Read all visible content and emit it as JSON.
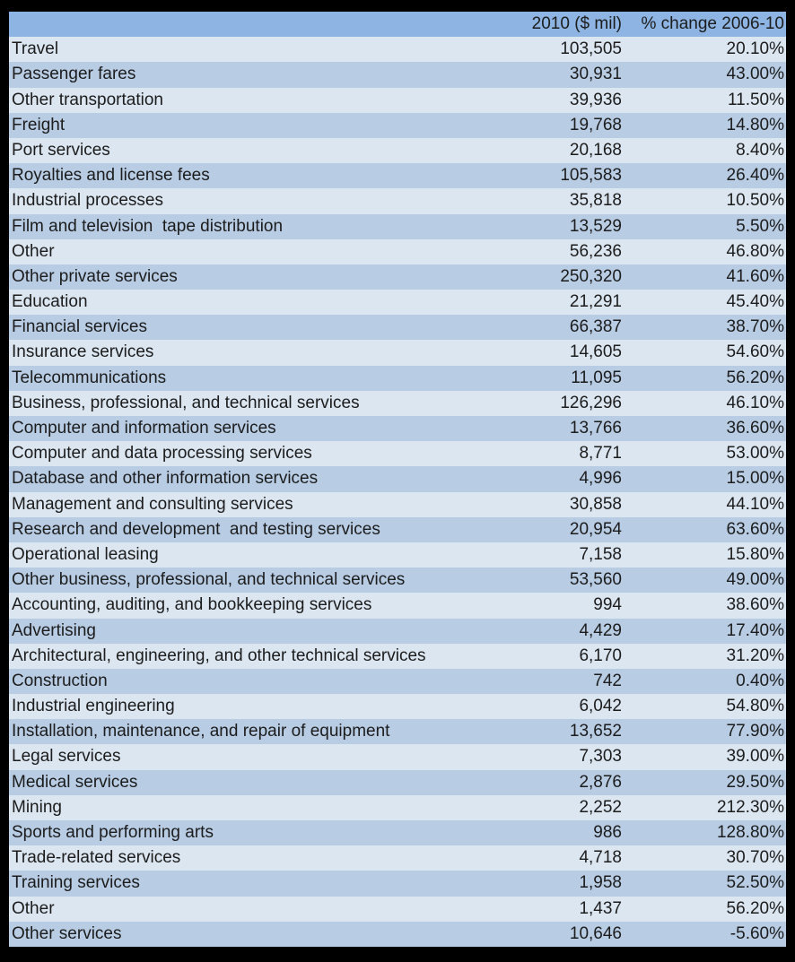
{
  "chart_data": {
    "type": "table",
    "columns": [
      "2010 ($ mil)",
      "% change 2006-10"
    ],
    "rows": [
      {
        "label": "Travel",
        "value_2010_mil": "103,505",
        "pct_change_2006_10": "20.10%"
      },
      {
        "label": "Passenger fares",
        "value_2010_mil": "30,931",
        "pct_change_2006_10": "43.00%"
      },
      {
        "label": "Other transportation",
        "value_2010_mil": "39,936",
        "pct_change_2006_10": "11.50%"
      },
      {
        "label": "Freight",
        "value_2010_mil": "19,768",
        "pct_change_2006_10": "14.80%"
      },
      {
        "label": "Port services",
        "value_2010_mil": "20,168",
        "pct_change_2006_10": "8.40%"
      },
      {
        "label": "Royalties and license fees",
        "value_2010_mil": "105,583",
        "pct_change_2006_10": "26.40%"
      },
      {
        "label": "Industrial processes",
        "value_2010_mil": "35,818",
        "pct_change_2006_10": "10.50%"
      },
      {
        "label": "Film and television  tape distribution",
        "value_2010_mil": "13,529",
        "pct_change_2006_10": "5.50%"
      },
      {
        "label": "Other",
        "value_2010_mil": "56,236",
        "pct_change_2006_10": "46.80%"
      },
      {
        "label": "Other private services",
        "value_2010_mil": "250,320",
        "pct_change_2006_10": "41.60%"
      },
      {
        "label": "Education",
        "value_2010_mil": "21,291",
        "pct_change_2006_10": "45.40%"
      },
      {
        "label": "Financial services",
        "value_2010_mil": "66,387",
        "pct_change_2006_10": "38.70%"
      },
      {
        "label": "Insurance services",
        "value_2010_mil": "14,605",
        "pct_change_2006_10": "54.60%"
      },
      {
        "label": "Telecommunications",
        "value_2010_mil": "11,095",
        "pct_change_2006_10": "56.20%"
      },
      {
        "label": "Business, professional, and technical services",
        "value_2010_mil": "126,296",
        "pct_change_2006_10": "46.10%"
      },
      {
        "label": "Computer and information services",
        "value_2010_mil": "13,766",
        "pct_change_2006_10": "36.60%"
      },
      {
        "label": "Computer and data processing services",
        "value_2010_mil": "8,771",
        "pct_change_2006_10": "53.00%"
      },
      {
        "label": "Database and other information services",
        "value_2010_mil": "4,996",
        "pct_change_2006_10": "15.00%"
      },
      {
        "label": "Management and consulting services",
        "value_2010_mil": "30,858",
        "pct_change_2006_10": "44.10%"
      },
      {
        "label": "Research and development  and testing services",
        "value_2010_mil": "20,954",
        "pct_change_2006_10": "63.60%"
      },
      {
        "label": "Operational leasing",
        "value_2010_mil": "7,158",
        "pct_change_2006_10": "15.80%"
      },
      {
        "label": "Other business, professional, and technical services",
        "value_2010_mil": "53,560",
        "pct_change_2006_10": "49.00%"
      },
      {
        "label": "Accounting, auditing, and bookkeeping services",
        "value_2010_mil": "994",
        "pct_change_2006_10": "38.60%"
      },
      {
        "label": "Advertising",
        "value_2010_mil": "4,429",
        "pct_change_2006_10": "17.40%"
      },
      {
        "label": "Architectural, engineering, and other technical services",
        "value_2010_mil": "6,170",
        "pct_change_2006_10": "31.20%"
      },
      {
        "label": "Construction",
        "value_2010_mil": "742",
        "pct_change_2006_10": "0.40%"
      },
      {
        "label": "Industrial engineering",
        "value_2010_mil": "6,042",
        "pct_change_2006_10": "54.80%"
      },
      {
        "label": "Installation, maintenance, and repair of equipment",
        "value_2010_mil": "13,652",
        "pct_change_2006_10": "77.90%"
      },
      {
        "label": "Legal services",
        "value_2010_mil": "7,303",
        "pct_change_2006_10": "39.00%"
      },
      {
        "label": "Medical services",
        "value_2010_mil": "2,876",
        "pct_change_2006_10": "29.50%"
      },
      {
        "label": "Mining",
        "value_2010_mil": "2,252",
        "pct_change_2006_10": "212.30%"
      },
      {
        "label": "Sports and performing arts",
        "value_2010_mil": "986",
        "pct_change_2006_10": "128.80%"
      },
      {
        "label": "Trade-related services",
        "value_2010_mil": "4,718",
        "pct_change_2006_10": "30.70%"
      },
      {
        "label": "Training services",
        "value_2010_mil": "1,958",
        "pct_change_2006_10": "52.50%"
      },
      {
        "label": "Other",
        "value_2010_mil": "1,437",
        "pct_change_2006_10": "56.20%"
      },
      {
        "label": "Other services",
        "value_2010_mil": "10,646",
        "pct_change_2006_10": "-5.60%"
      }
    ]
  },
  "colors": {
    "frame": "#000000",
    "header_bg": "#8db4e2",
    "row_light": "#dce6f1",
    "row_dark": "#b8cce4",
    "text": "#1c1c1c"
  }
}
